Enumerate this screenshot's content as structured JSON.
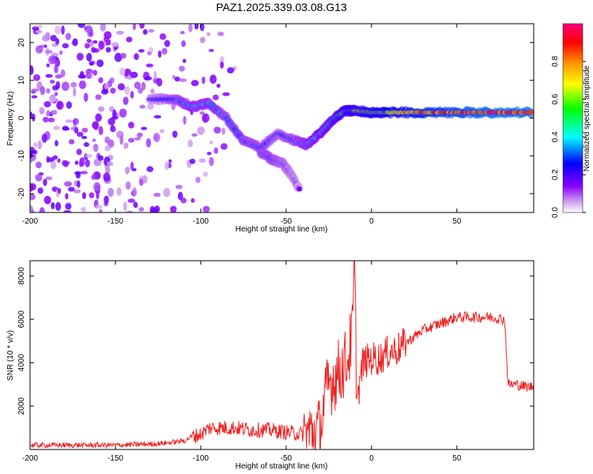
{
  "figure": {
    "title": "PAZ1.2025.339.03.08.G13"
  },
  "chart_data": [
    {
      "type": "heatmap",
      "xlabel": "Height of straight line (km)",
      "ylabel": "Frequency (Hz)",
      "xlim": [
        -200,
        95
      ],
      "ylim": [
        -25,
        25
      ],
      "xticks": [
        -200,
        -150,
        -100,
        -50,
        0,
        50
      ],
      "yticks": [
        -20,
        -10,
        0,
        10,
        20
      ],
      "colorbar": {
        "label": "Normalized spectral amplitude",
        "range": [
          0,
          1
        ],
        "ticks": [
          "0.0",
          "0.2",
          "0.4",
          "0.6",
          "0.8"
        ],
        "colormap": [
          "#ffffff",
          "#cc99ee",
          "#8800ff",
          "#0000ff",
          "#00ffff",
          "#00ff00",
          "#ffff00",
          "#ff8800",
          "#ff0000",
          "#ff0080"
        ]
      },
      "ridge": {
        "x": [
          -130,
          -115,
          -105,
          -95,
          -85,
          -75,
          -65,
          -55,
          -45,
          -38,
          -30,
          -22,
          -15,
          -10,
          0,
          10,
          30,
          50,
          70,
          95
        ],
        "y": [
          5,
          5,
          3,
          4,
          0,
          -6,
          -8,
          -4,
          -6,
          -7,
          -4,
          0,
          2,
          2,
          1.5,
          1.5,
          1.5,
          1.5,
          1.5,
          1.5
        ],
        "amplitude": [
          0.2,
          0.3,
          0.35,
          0.35,
          0.3,
          0.3,
          0.3,
          0.25,
          0.3,
          0.35,
          0.4,
          0.5,
          0.6,
          0.6,
          0.65,
          0.7,
          0.8,
          0.85,
          0.9,
          0.9
        ]
      },
      "branch": {
        "x": [
          -65,
          -58,
          -52,
          -47,
          -42
        ],
        "y": [
          -9,
          -11,
          -12,
          -15,
          -19
        ],
        "amplitude": [
          0.3,
          0.3,
          0.25,
          0.2,
          0.15
        ]
      },
      "noise_region_x": [
        -200,
        -105
      ]
    },
    {
      "type": "line",
      "xlabel": "Height of straight line (km)",
      "ylabel": "SNR (10 * v/v)",
      "xlim": [
        -200,
        95
      ],
      "ylim": [
        0,
        8700
      ],
      "xticks": [
        -200,
        -150,
        -100,
        -50,
        0,
        50
      ],
      "yticks": [
        2000,
        4000,
        6000,
        8000
      ],
      "line_color": "#ee2222",
      "series": [
        {
          "x": [
            -200,
            -150,
            -130,
            -120,
            -110,
            -105,
            -100,
            -95,
            -90,
            -80,
            -70,
            -60,
            -50,
            -40,
            -35,
            -30,
            -28,
            -25,
            -20,
            -15,
            -13,
            -11,
            -10,
            -9,
            -8,
            -5,
            0,
            5,
            10,
            15,
            20,
            25,
            30,
            40,
            50,
            60,
            70,
            78,
            79,
            80,
            85,
            90,
            95
          ],
          "y": [
            200,
            200,
            250,
            300,
            400,
            600,
            700,
            1000,
            1000,
            1000,
            900,
            900,
            800,
            700,
            800,
            900,
            2000,
            3000,
            3500,
            4000,
            4500,
            5500,
            8700,
            4000,
            2500,
            4000,
            4200,
            4200,
            4500,
            4600,
            4900,
            5200,
            5500,
            5800,
            6100,
            6100,
            6100,
            6000,
            4500,
            3000,
            3000,
            2900,
            2900
          ]
        }
      ]
    }
  ]
}
